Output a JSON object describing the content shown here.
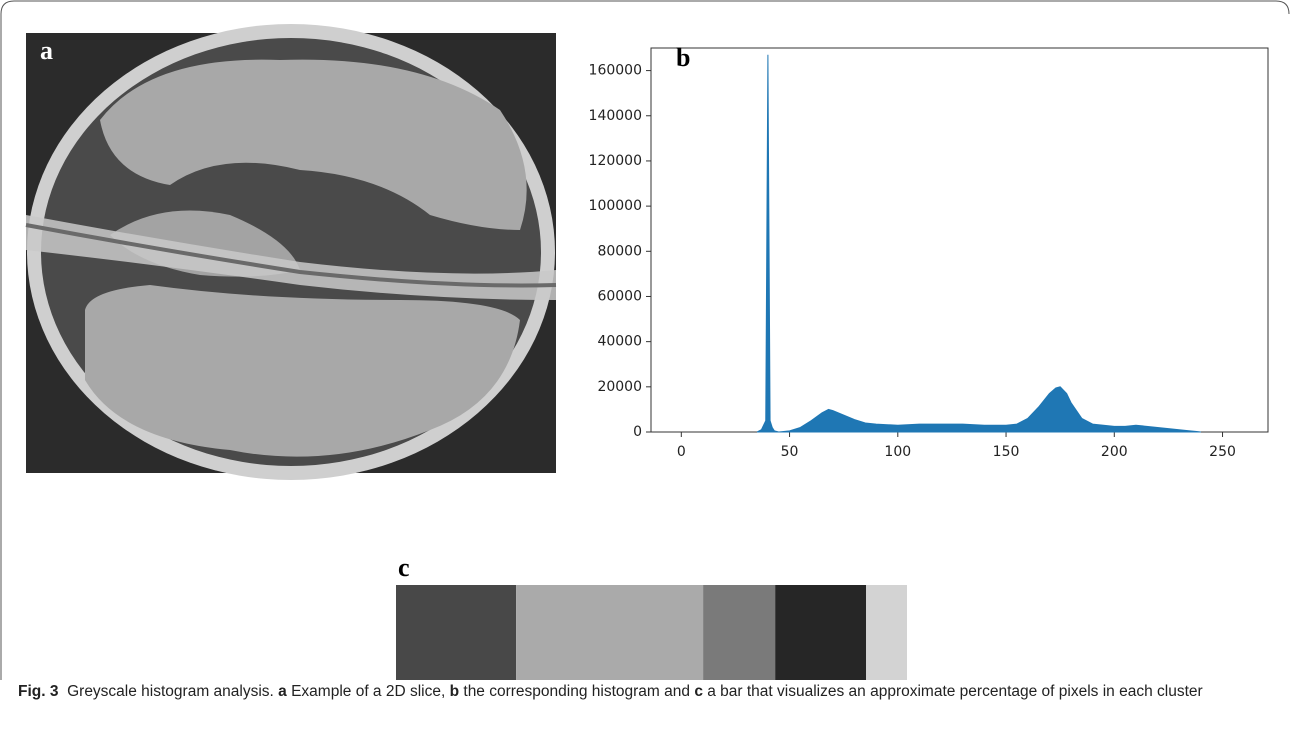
{
  "panel_labels": [
    "a",
    "b",
    "c"
  ],
  "chart_data": {
    "type": "area",
    "color": "#1f77b4",
    "x": [
      35,
      37,
      38,
      39,
      40,
      41,
      42,
      43,
      45,
      50,
      55,
      60,
      65,
      68,
      70,
      75,
      80,
      85,
      90,
      100,
      110,
      120,
      130,
      140,
      150,
      155,
      160,
      165,
      170,
      173,
      175,
      178,
      180,
      185,
      190,
      195,
      200,
      205,
      210,
      215,
      220,
      225,
      230,
      235,
      238,
      240
    ],
    "values": [
      0,
      1000,
      3000,
      5000,
      167000,
      5000,
      2000,
      500,
      0,
      500,
      2000,
      5000,
      8500,
      10000,
      9500,
      7500,
      5500,
      4000,
      3500,
      3000,
      3500,
      3500,
      3500,
      3000,
      3000,
      3500,
      6000,
      11000,
      17000,
      19500,
      20000,
      17000,
      13000,
      6000,
      3500,
      3000,
      2500,
      2500,
      3000,
      2500,
      2000,
      1500,
      1000,
      500,
      200,
      0
    ],
    "xlim": [
      -14,
      271
    ],
    "ylim": [
      0,
      170000
    ],
    "xticks": [
      0,
      50,
      100,
      150,
      200,
      250
    ],
    "yticks": [
      0,
      20000,
      40000,
      60000,
      80000,
      100000,
      120000,
      140000,
      160000
    ]
  },
  "cluster_bar": {
    "values": [
      23.5,
      36.6,
      14.1,
      17.8,
      8.0
    ],
    "colors": [
      "#484848",
      "#aaaaaa",
      "#7a7a7a",
      "#262626",
      "#d3d3d3"
    ]
  },
  "caption": [
    {
      "text": "Fig. 3",
      "bold": true
    },
    {
      "text": "  Greyscale histogram analysis. ",
      "bold": false
    },
    {
      "text": "a",
      "bold": true
    },
    {
      "text": " Example of a 2D slice, ",
      "bold": false
    },
    {
      "text": "b",
      "bold": true
    },
    {
      "text": " the corresponding histogram and ",
      "bold": false
    },
    {
      "text": "c",
      "bold": true
    },
    {
      "text": " a bar that visualizes an approximate percentage of pixels in each cluster",
      "bold": false
    }
  ]
}
